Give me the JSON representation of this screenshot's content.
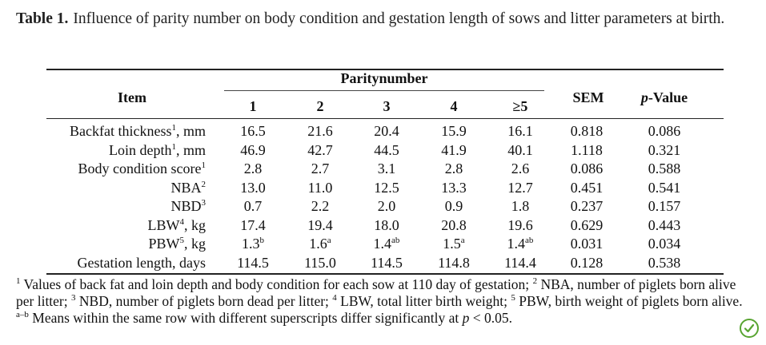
{
  "caption": {
    "label": "Table 1.",
    "text": "Influence of parity number on body condition and gestation length of sows and litter parameters at birth."
  },
  "table": {
    "item_header": "Item",
    "group_header": "Paritynumber",
    "parity_columns": [
      "1",
      "2",
      "3",
      "4",
      "≥5"
    ],
    "sem_header": "SEM",
    "pvalue_header_italic": "p",
    "pvalue_header_rest": "-Value",
    "rows": [
      {
        "item": "Backfat thickness",
        "sup": "1",
        "unit": ", mm",
        "values": [
          "16.5",
          "21.6",
          "20.4",
          "15.9",
          "16.1"
        ],
        "value_sups": [
          "",
          "",
          "",
          "",
          ""
        ],
        "sem": "0.818",
        "p": "0.086"
      },
      {
        "item": "Loin depth",
        "sup": "1",
        "unit": ", mm",
        "values": [
          "46.9",
          "42.7",
          "44.5",
          "41.9",
          "40.1"
        ],
        "value_sups": [
          "",
          "",
          "",
          "",
          ""
        ],
        "sem": "1.118",
        "p": "0.321"
      },
      {
        "item": "Body condition score",
        "sup": "1",
        "unit": "",
        "values": [
          "2.8",
          "2.7",
          "3.1",
          "2.8",
          "2.6"
        ],
        "value_sups": [
          "",
          "",
          "",
          "",
          ""
        ],
        "sem": "0.086",
        "p": "0.588"
      },
      {
        "item": "NBA",
        "sup": "2",
        "unit": "",
        "values": [
          "13.0",
          "11.0",
          "12.5",
          "13.3",
          "12.7"
        ],
        "value_sups": [
          "",
          "",
          "",
          "",
          ""
        ],
        "sem": "0.451",
        "p": "0.541"
      },
      {
        "item": "NBD",
        "sup": "3",
        "unit": "",
        "values": [
          "0.7",
          "2.2",
          "2.0",
          "0.9",
          "1.8"
        ],
        "value_sups": [
          "",
          "",
          "",
          "",
          ""
        ],
        "sem": "0.237",
        "p": "0.157"
      },
      {
        "item": "LBW",
        "sup": "4",
        "unit": ", kg",
        "values": [
          "17.4",
          "19.4",
          "18.0",
          "20.8",
          "19.6"
        ],
        "value_sups": [
          "",
          "",
          "",
          "",
          ""
        ],
        "sem": "0.629",
        "p": "0.443"
      },
      {
        "item": "PBW",
        "sup": "5",
        "unit": ", kg",
        "values": [
          "1.3",
          "1.6",
          "1.4",
          "1.5",
          "1.4"
        ],
        "value_sups": [
          "b",
          "a",
          "ab",
          "a",
          "ab"
        ],
        "sem": "0.031",
        "p": "0.034"
      },
      {
        "item": "Gestation length, days",
        "sup": "",
        "unit": "",
        "values": [
          "114.5",
          "115.0",
          "114.5",
          "114.8",
          "114.4"
        ],
        "value_sups": [
          "",
          "",
          "",
          "",
          ""
        ],
        "sem": "0.128",
        "p": "0.538"
      }
    ]
  },
  "footnote": {
    "n1_sup": "1",
    "n1": " Values of back fat and loin depth and body condition for each sow at 110 day of gestation; ",
    "n2_sup": "2",
    "n2": " NBA, number of piglets born alive per litter; ",
    "n3_sup": "3",
    "n3": " NBD, number of piglets born dead per litter; ",
    "n4_sup": "4",
    "n4": " LBW, total litter birth weight; ",
    "n5_sup": "5",
    "n5": " PBW, birth weight of piglets born alive. ",
    "ab_sup": "a–b",
    "ab": " Means within the same row with different superscripts differ significantly at ",
    "p_italic": "p",
    "ab_end": " < 0.05."
  },
  "icons": {
    "badge": "check-circle-icon",
    "badge_color": "#58a431"
  }
}
